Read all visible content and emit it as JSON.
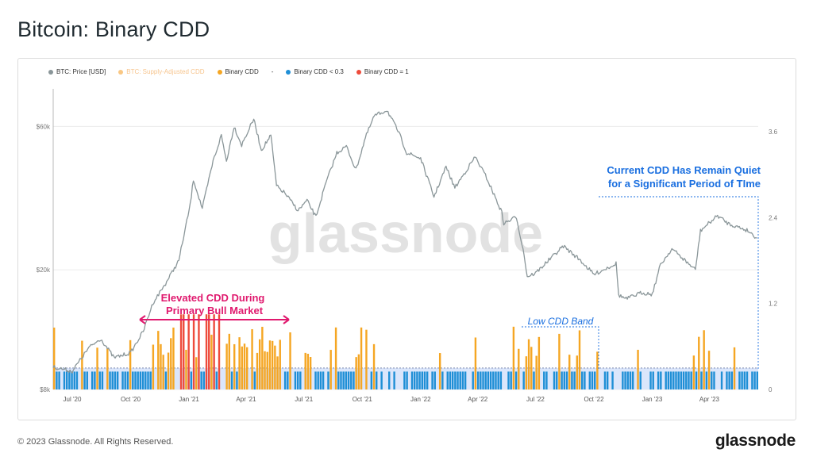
{
  "title": "Bitcoin: Binary CDD",
  "legend": [
    {
      "label": "BTC: Price [USD]",
      "color": "#8a9699",
      "muted": false
    },
    {
      "label": "BTC: Supply-Adjusted CDD",
      "color": "#f7931a",
      "muted": true
    },
    {
      "label": "Binary CDD",
      "color": "#f5a623",
      "muted": false
    },
    {
      "label": "-",
      "color": "",
      "muted": false
    },
    {
      "label": "Binary CDD < 0.3",
      "color": "#1f8fd6",
      "muted": false
    },
    {
      "label": "Binary CDD = 1",
      "color": "#ee4b3b",
      "muted": false
    }
  ],
  "watermark": "glassnode",
  "annotations": {
    "bull_line1": "Elevated CDD During",
    "bull_line2": "Primary Bull Market",
    "low_band": "Low CDD Band",
    "quiet_line1": "Current CDD Has Remain Quiet",
    "quiet_line2": "for a Significant Period of TIme"
  },
  "colors": {
    "price": "#8a9699",
    "orange": "#f5a623",
    "blue": "#1f8fd6",
    "red": "#ee4b3b",
    "bull_annotation": "#e0196e",
    "quiet_annotation": "#1a6fe0",
    "band": "#dbe6fb"
  },
  "chart_data": {
    "type": "line",
    "x_tick_labels": [
      "Jul '20",
      "Oct '20",
      "Jan '21",
      "Apr '21",
      "Jul '21",
      "Oct '21",
      "Jan '22",
      "Apr '22",
      "Jul '22",
      "Oct '22",
      "Jan '23",
      "Apr '23"
    ],
    "y_left_tick_labels": [
      "$8k",
      "$20k",
      "$60k"
    ],
    "y_left_scale": "log",
    "y_left_range": [
      8000,
      80000
    ],
    "y_right_tick_labels": [
      "0",
      "1.2",
      "2.4",
      "3.6"
    ],
    "y_right_range": [
      0,
      4.2
    ],
    "binary_cdd_threshold": 0.3,
    "series": [
      {
        "name": "BTC: Price [USD]",
        "x": [
          "2020-06-01",
          "2020-07-01",
          "2020-07-27",
          "2020-08-15",
          "2020-09-05",
          "2020-10-01",
          "2020-10-21",
          "2020-11-05",
          "2020-11-25",
          "2020-12-16",
          "2021-01-03",
          "2021-01-08",
          "2021-01-22",
          "2021-02-08",
          "2021-02-21",
          "2021-03-01",
          "2021-03-13",
          "2021-03-25",
          "2021-04-13",
          "2021-04-25",
          "2021-05-10",
          "2021-05-19",
          "2021-06-01",
          "2021-06-22",
          "2021-07-06",
          "2021-07-20",
          "2021-08-05",
          "2021-08-22",
          "2021-09-06",
          "2021-09-21",
          "2021-10-06",
          "2021-10-20",
          "2021-11-09",
          "2021-11-28",
          "2021-12-10",
          "2022-01-01",
          "2022-01-22",
          "2022-02-10",
          "2022-02-24",
          "2022-03-28",
          "2022-04-15",
          "2022-05-09",
          "2022-05-12",
          "2022-06-01",
          "2022-06-13",
          "2022-06-18",
          "2022-07-01",
          "2022-08-14",
          "2022-09-10",
          "2022-10-01",
          "2022-11-05",
          "2022-11-09",
          "2022-11-21",
          "2022-12-15",
          "2023-01-01",
          "2023-01-14",
          "2023-02-01",
          "2023-03-10",
          "2023-03-18",
          "2023-04-14",
          "2023-05-01",
          "2023-06-01",
          "2023-06-15"
        ],
        "y": [
          9500,
          9200,
          11000,
          11800,
          10200,
          10600,
          12500,
          15500,
          18000,
          21500,
          33000,
          40000,
          32000,
          46000,
          56000,
          46000,
          60000,
          52000,
          63500,
          50000,
          56000,
          38000,
          36000,
          31500,
          34000,
          30000,
          39000,
          49000,
          51500,
          43000,
          55000,
          65000,
          68000,
          57000,
          49000,
          47000,
          35000,
          44000,
          37500,
          47500,
          40500,
          31000,
          28500,
          30000,
          22500,
          19000,
          19500,
          24000,
          21500,
          19300,
          21000,
          16500,
          16000,
          16800,
          16600,
          20800,
          23500,
          20000,
          27000,
          30300,
          28500,
          27000,
          25500
        ]
      },
      {
        "name": "Binary CDD",
        "x": [
          "2020-06-01",
          "2023-06-17"
        ],
        "values_by_bar": "binary 0/1 (approx. 1 flag per week)",
        "bull_period_flag_ratio": "very high",
        "late_period_flag_ratio": "low"
      }
    ],
    "grid": true,
    "legend_placement": "top-left"
  }
}
